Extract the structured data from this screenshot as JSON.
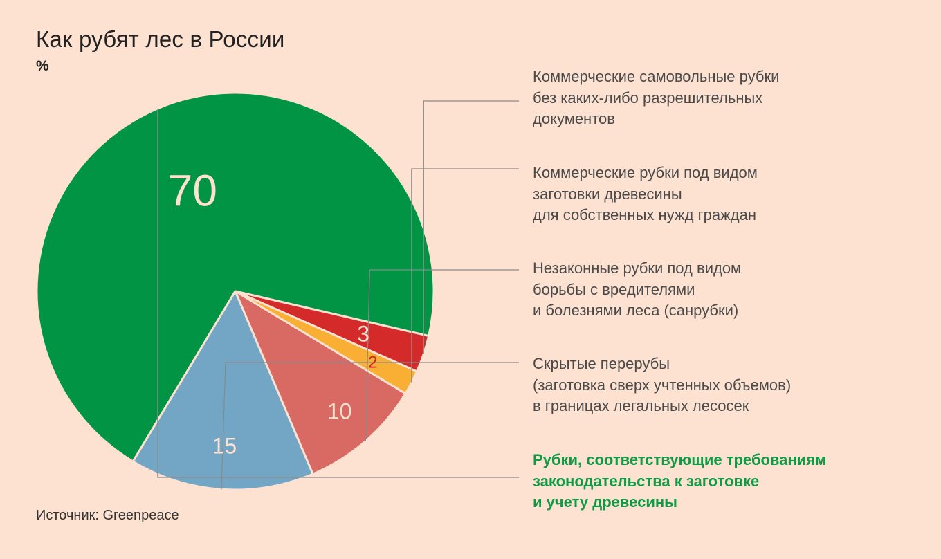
{
  "header": {
    "title": "Как рубят лес в России",
    "unit": "%"
  },
  "footer": {
    "source": "Источник: Greenpeace"
  },
  "chart_data": {
    "type": "pie",
    "title": "Как рубят лес в России",
    "unit": "%",
    "slices": [
      {
        "label": "Рубки, соответствующие требованиям\nзаконодательства к заготовке\nи учету древесины",
        "value": 70,
        "color": "#009444",
        "value_label_color": "#fde1d1",
        "highlight": true
      },
      {
        "label": "Коммерческие самовольные рубки\nбез каких-либо разрешительных\nдокументов",
        "value": 3,
        "color": "#d42a2a",
        "value_label_color": "#fde1d1",
        "highlight": false
      },
      {
        "label": "Коммерческие рубки под видом\nзаготовки древесины\nдля собственных нужд граждан",
        "value": 2,
        "color": "#f9ae34",
        "value_label_color": "#cc2222",
        "highlight": false
      },
      {
        "label": "Незаконные рубки под видом\nборьбы с вредителями\nи болезнями леса (санрубки)",
        "value": 10,
        "color": "#d96a63",
        "value_label_color": "#fde1d1",
        "highlight": false
      },
      {
        "label": "Скрытые перерубы\n(заготовка сверх учтенных объемов)\nв границах легальных лесосек",
        "value": 15,
        "color": "#72a6c4",
        "value_label_color": "#fde1d1",
        "highlight": false
      }
    ]
  }
}
